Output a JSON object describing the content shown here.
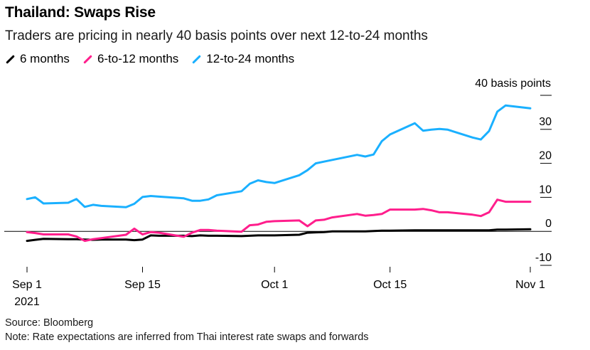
{
  "header": {
    "title": "Thailand: Swaps Rise",
    "subtitle": "Traders are pricing in nearly 40 basis points over next 12-to-24 months"
  },
  "footer": {
    "source": "Source: Bloomberg",
    "note": "Note: Rate expectations are inferred from Thai interest rate swaps and forwards"
  },
  "chart_data": {
    "type": "line",
    "title": "Thailand: Swaps Rise",
    "subtitle": "Traders are pricing in nearly 40 basis points over next 12-to-24 months",
    "ylabel": "40 basis points",
    "ylim": [
      -10,
      40
    ],
    "y_ticks": [
      -10,
      0,
      10,
      20,
      30
    ],
    "x_ticks": [
      {
        "date": "2021-09-01",
        "label": "Sep 1",
        "sublabel": "2021"
      },
      {
        "date": "2021-09-15",
        "label": "Sep 15"
      },
      {
        "date": "2021-10-01",
        "label": "Oct 1"
      },
      {
        "date": "2021-10-15",
        "label": "Oct 15"
      },
      {
        "date": "2021-11-01",
        "label": "Nov 1"
      }
    ],
    "xlim": [
      "2021-09-01",
      "2021-11-01"
    ],
    "grid": true,
    "legend_position": "top-left",
    "x": [
      "2021-09-01",
      "2021-09-02",
      "2021-09-03",
      "2021-09-06",
      "2021-09-07",
      "2021-09-08",
      "2021-09-09",
      "2021-09-10",
      "2021-09-13",
      "2021-09-14",
      "2021-09-15",
      "2021-09-16",
      "2021-09-17",
      "2021-09-20",
      "2021-09-21",
      "2021-09-22",
      "2021-09-23",
      "2021-09-24",
      "2021-09-27",
      "2021-09-28",
      "2021-09-29",
      "2021-09-30",
      "2021-10-01",
      "2021-10-04",
      "2021-10-05",
      "2021-10-06",
      "2021-10-07",
      "2021-10-08",
      "2021-10-11",
      "2021-10-12",
      "2021-10-13",
      "2021-10-14",
      "2021-10-15",
      "2021-10-18",
      "2021-10-19",
      "2021-10-20",
      "2021-10-21",
      "2021-10-22",
      "2021-10-25",
      "2021-10-26",
      "2021-10-27",
      "2021-10-28",
      "2021-10-29",
      "2021-11-01"
    ],
    "series": [
      {
        "name": "6 months",
        "color": "#000000",
        "values": [
          -2.8,
          -2.5,
          -2.2,
          -2.3,
          -2.3,
          -2.4,
          -2.5,
          -2.4,
          -2.4,
          -2.6,
          -2.4,
          -1.2,
          -1.3,
          -1.3,
          -1.4,
          -1.2,
          -1.3,
          -1.3,
          -1.4,
          -1.3,
          -1.2,
          -1.2,
          -1.2,
          -1.0,
          -0.4,
          -0.3,
          -0.2,
          0.0,
          0.0,
          0.0,
          0.1,
          0.2,
          0.2,
          0.3,
          0.3,
          0.3,
          0.3,
          0.3,
          0.3,
          0.3,
          0.3,
          0.5,
          0.5,
          0.6
        ]
      },
      {
        "name": "6-to-12 months",
        "color": "#ff1e8c",
        "values": [
          -0.2,
          -0.5,
          -0.9,
          -0.9,
          -1.5,
          -2.8,
          -2.3,
          -2.0,
          -1.0,
          0.8,
          -0.9,
          -0.2,
          -0.4,
          -1.6,
          -0.4,
          0.4,
          0.4,
          0.2,
          -0.1,
          1.8,
          2.0,
          2.8,
          3.0,
          3.2,
          1.5,
          3.2,
          3.4,
          4.1,
          5.1,
          4.6,
          4.8,
          5.1,
          6.4,
          6.4,
          6.6,
          6.2,
          5.6,
          5.6,
          4.9,
          4.5,
          5.6,
          9.3,
          8.7,
          8.7
        ]
      },
      {
        "name": "12-to-24 months",
        "color": "#1ab0ff",
        "values": [
          9.5,
          10.0,
          8.2,
          8.4,
          9.5,
          7.2,
          7.8,
          7.5,
          7.1,
          8.1,
          10.1,
          10.4,
          10.2,
          9.7,
          9.0,
          9.0,
          9.4,
          10.6,
          11.8,
          14.0,
          15.0,
          14.5,
          14.2,
          16.5,
          18.0,
          20.0,
          20.5,
          21.0,
          22.5,
          22.0,
          22.6,
          26.5,
          28.5,
          31.8,
          29.6,
          29.9,
          30.1,
          29.9,
          27.6,
          27.0,
          29.5,
          35.2,
          37.0,
          36.2
        ]
      }
    ]
  }
}
